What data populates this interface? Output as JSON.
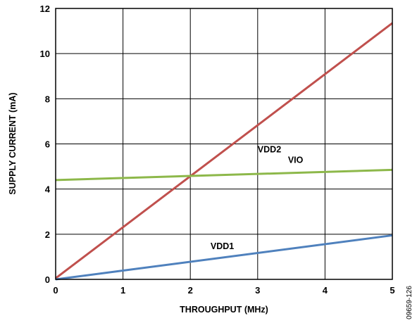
{
  "chart_data": {
    "type": "line",
    "title": "",
    "xlabel": "THROUGHPUT (MHz)",
    "ylabel": "SUPPLY CURRENT (mA)",
    "xlim": [
      0,
      5
    ],
    "ylim": [
      0,
      12
    ],
    "xticks": [
      "0",
      "1",
      "2",
      "3",
      "4",
      "5"
    ],
    "yticks": [
      "0",
      "2",
      "4",
      "6",
      "8",
      "10",
      "12"
    ],
    "grid": true,
    "legend": "none (series labeled inline)",
    "series": [
      {
        "name": "VDD2",
        "color": "#c0504d",
        "x": [
          0,
          5
        ],
        "y": [
          0.05,
          11.35
        ]
      },
      {
        "name": "VIO",
        "color": "#8db84a",
        "x": [
          0,
          5
        ],
        "y": [
          4.4,
          4.85
        ]
      },
      {
        "name": "VDD1",
        "color": "#4f81bd",
        "x": [
          0,
          5
        ],
        "y": [
          0.0,
          1.95
        ]
      }
    ],
    "figure_id": "09659-126"
  }
}
